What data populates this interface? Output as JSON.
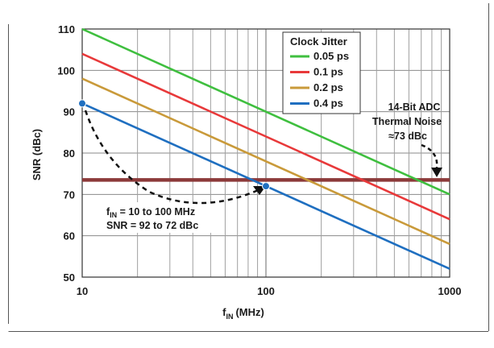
{
  "chart_data": {
    "type": "line",
    "x_scale": "log",
    "xlabel": "f",
    "xlabel_sub": "IN",
    "xlabel_unit": "(MHz)",
    "ylabel": "SNR (dBc)",
    "xlim": [
      10,
      1000
    ],
    "ylim": [
      50,
      110
    ],
    "xticks": [
      10,
      100,
      1000
    ],
    "xtick_labels": [
      "10",
      "100",
      "1000"
    ],
    "yticks": [
      50,
      60,
      70,
      80,
      90,
      100,
      110
    ],
    "ytick_labels": [
      "50",
      "60",
      "70",
      "80",
      "90",
      "100",
      "110"
    ],
    "grid": true,
    "legend": {
      "title": "Clock Jitter",
      "placement": "top-center"
    },
    "series": [
      {
        "name": "0.05 ps",
        "color": "#3fbf3f",
        "x": [
          10,
          1000
        ],
        "y": [
          110,
          70
        ]
      },
      {
        "name": "0.1 ps",
        "color": "#e8393a",
        "x": [
          10,
          1000
        ],
        "y": [
          104,
          64
        ]
      },
      {
        "name": "0.2 ps",
        "color": "#c99a3a",
        "x": [
          10,
          1000
        ],
        "y": [
          98,
          58
        ]
      },
      {
        "name": "0.4 ps",
        "color": "#1f6fc0",
        "x": [
          10,
          1000
        ],
        "y": [
          92,
          52
        ]
      }
    ],
    "thermal_noise": {
      "y": 73.5,
      "color": "#8c3a3a",
      "label_lines": [
        "14-Bit ADC",
        "Thermal Noise",
        "≈73 dBc"
      ]
    },
    "markers": [
      {
        "x": 10,
        "y": 92,
        "color": "#1f6fc0"
      },
      {
        "x": 100,
        "y": 72,
        "color": "#1f6fc0"
      }
    ],
    "annotation_range": {
      "line1_main": "f",
      "line1_sub": "IN",
      "line1_rest": " = 10 to 100 MHz",
      "line2": "SNR = 92 to 72 dBc"
    }
  }
}
